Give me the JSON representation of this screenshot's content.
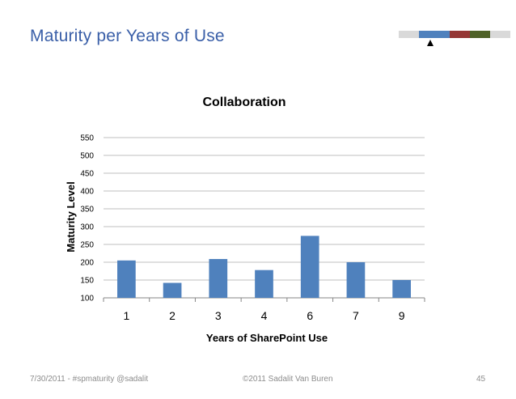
{
  "slide": {
    "title": "Maturity per Years of Use",
    "nav_colors": [
      "#d9d9d9",
      "#4f81bd",
      "#953735",
      "#4f6228",
      "#d9d9d9"
    ],
    "footer_left": "7/30/2011 - #spmaturity @sadalit",
    "footer_center": "©2011 Sadalit Van Buren",
    "footer_page": "45"
  },
  "chart_data": {
    "type": "bar",
    "title": "Collaboration",
    "xlabel": "Years of SharePoint Use",
    "ylabel": "Maturity Level",
    "categories": [
      "1",
      "2",
      "3",
      "4",
      "6",
      "7",
      "9"
    ],
    "values": [
      205,
      142,
      209,
      178,
      274,
      200,
      150
    ],
    "ylim": [
      100,
      550
    ],
    "yticks": [
      "100",
      "150",
      "200",
      "250",
      "300",
      "350",
      "400",
      "450",
      "500",
      "550"
    ],
    "grid": true,
    "bar_color": "#4f81bd"
  }
}
